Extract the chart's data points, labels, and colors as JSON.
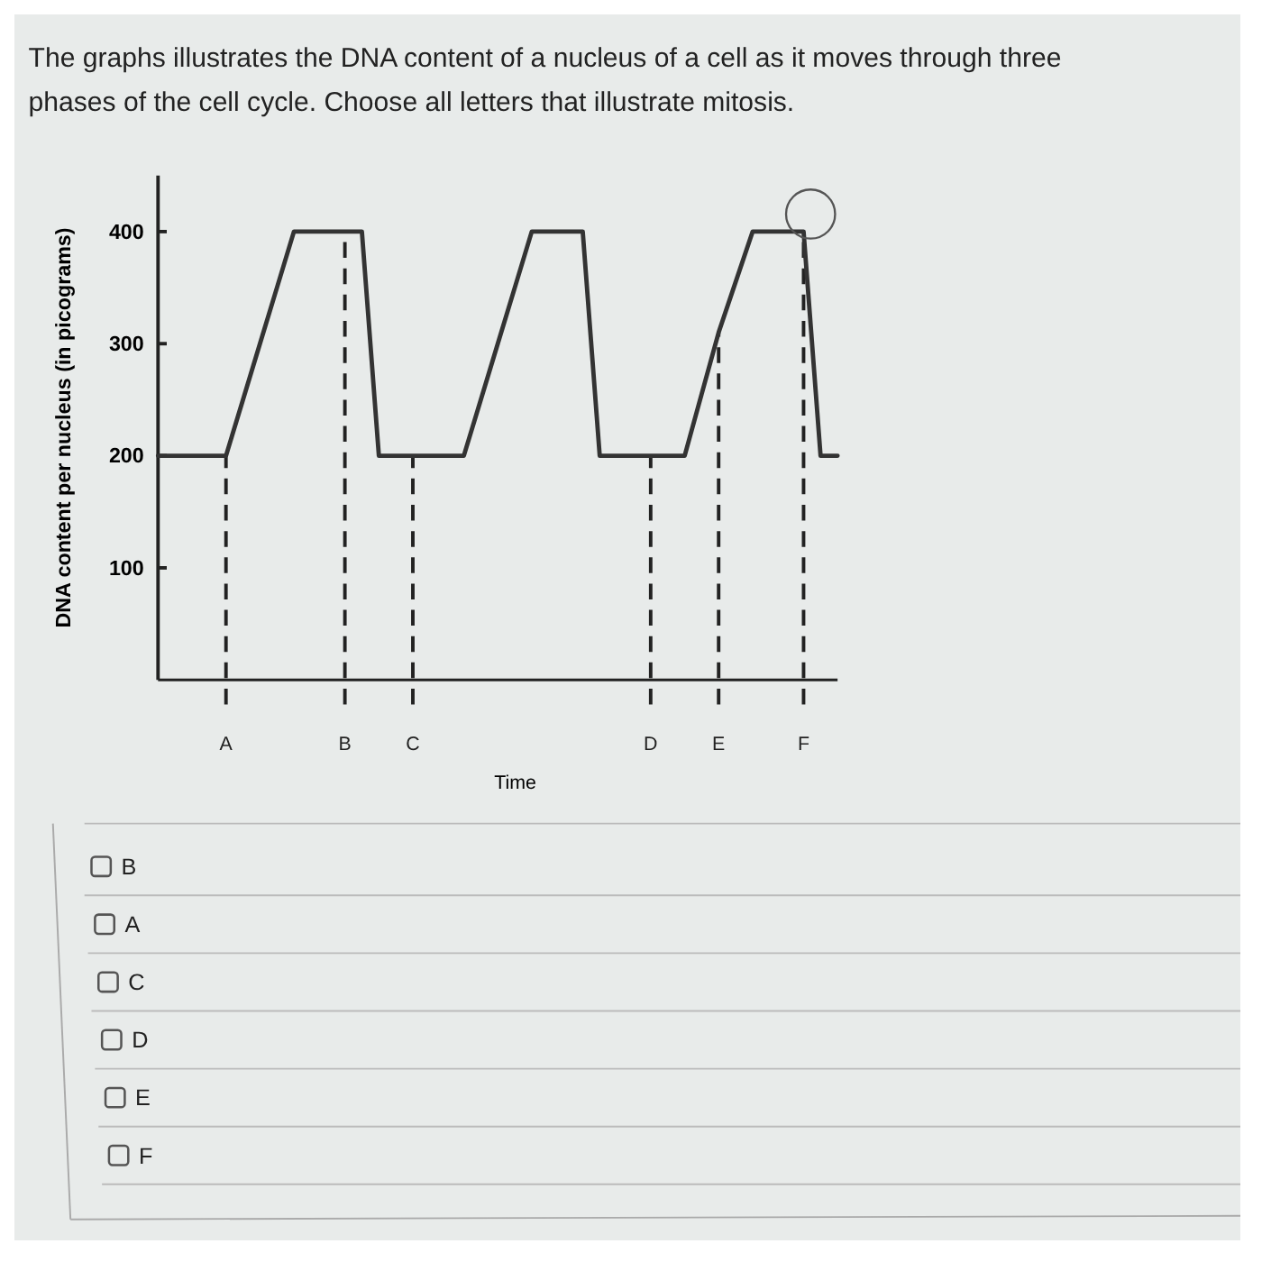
{
  "chart_data": {
    "type": "line",
    "title": "The graphs illustrates the DNA content of a nucleus of a cell as it moves through three phases of the cell cycle.  Choose all letters that illustrate mitosis.",
    "xlabel": "Time",
    "ylabel": "DNA content per nucleus (in picograms)",
    "categories": [
      null,
      null,
      null,
      null,
      "A",
      null,
      null,
      null,
      null,
      null,
      null,
      "B",
      null,
      null,
      null,
      "C",
      null,
      null,
      null,
      null,
      null,
      null,
      null,
      null,
      null,
      null,
      null,
      null,
      null,
      "D",
      null,
      null,
      null,
      "E",
      null,
      null,
      null,
      null,
      "F",
      null,
      null
    ],
    "ylim": [
      0,
      450
    ],
    "yticks": [
      100,
      200,
      300,
      400
    ],
    "series": [
      {
        "color": "#333333",
        "values": [
          200,
          200,
          200,
          200,
          200,
          250,
          300,
          350,
          400,
          400,
          400,
          400,
          400,
          200,
          200,
          200,
          200,
          200,
          200,
          250,
          300,
          350,
          400,
          400,
          400,
          400,
          200,
          200,
          200,
          200,
          200,
          200,
          255,
          310,
          355,
          400,
          400,
          400,
          400,
          200,
          200
        ]
      }
    ],
    "ref_lines": [
      {
        "axis": "x",
        "value": "A",
        "line_style": "dashed"
      },
      {
        "axis": "x",
        "value": "B",
        "line_style": "dashed"
      },
      {
        "axis": "x",
        "value": "C",
        "line_style": "dashed"
      },
      {
        "axis": "x",
        "value": "D",
        "line_style": "dashed"
      },
      {
        "axis": "x",
        "value": "E",
        "line_style": "dashed"
      },
      {
        "axis": "x",
        "value": "F",
        "line_style": "dashed"
      }
    ],
    "annotations": [
      "B",
      "A",
      "C",
      "D",
      "E",
      "F"
    ],
    "grid": false,
    "line_style": "solid"
  }
}
